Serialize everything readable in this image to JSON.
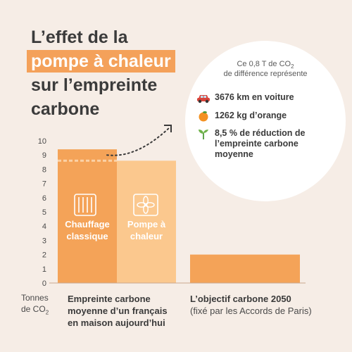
{
  "title": {
    "line1": "L’effet de la",
    "highlight": "pompe à chaleur",
    "line3": "sur l’empreinte",
    "line4": "carbone"
  },
  "bubble": {
    "header_line1": "Ce 0,8 T de CO",
    "header_sub": "2",
    "header_line2": "de différence représente",
    "rows": [
      {
        "icon": "car-icon",
        "text": "3676 km en voiture"
      },
      {
        "icon": "orange-icon",
        "text": "1262 kg d’orange"
      },
      {
        "icon": "sprout-icon",
        "line1": "8,5 % de réduction de",
        "line2": "l’empreinte carbone",
        "line3": "moyenne"
      }
    ]
  },
  "y_axis": {
    "label_line1": "Tonnes",
    "label_line2": "de CO",
    "label_sub": "2"
  },
  "x_labels": {
    "group1_line1": "Empreinte carbone",
    "group1_line2": "moyenne d’un français",
    "group1_line3": "en maison aujourd’hui",
    "group2_line1": "L’objectif carbone 2050",
    "group2_line2": "(fixé par les Accords de Paris)"
  },
  "chart_data": {
    "type": "bar",
    "ylim": [
      0,
      10
    ],
    "yticks": [
      0,
      1,
      2,
      3,
      4,
      5,
      6,
      7,
      8,
      9,
      10
    ],
    "grid": false,
    "bars": [
      {
        "label_line1": "Chauffage",
        "label_line2": "classique",
        "value": 9.4,
        "color": "#f4a358",
        "icon": "radiator-icon"
      },
      {
        "label_line1": "Pompe à",
        "label_line2": "chaleur",
        "value": 8.6,
        "color": "#fbc88e",
        "icon": "heat-pump-icon"
      },
      {
        "value": 2.0,
        "color": "#f4a358"
      }
    ],
    "reference_line_value": 8.6
  },
  "colors": {
    "accent": "#f4a15a",
    "bar_dark": "#f4a358",
    "bar_light": "#fbc88e",
    "background": "#f6ede6"
  }
}
